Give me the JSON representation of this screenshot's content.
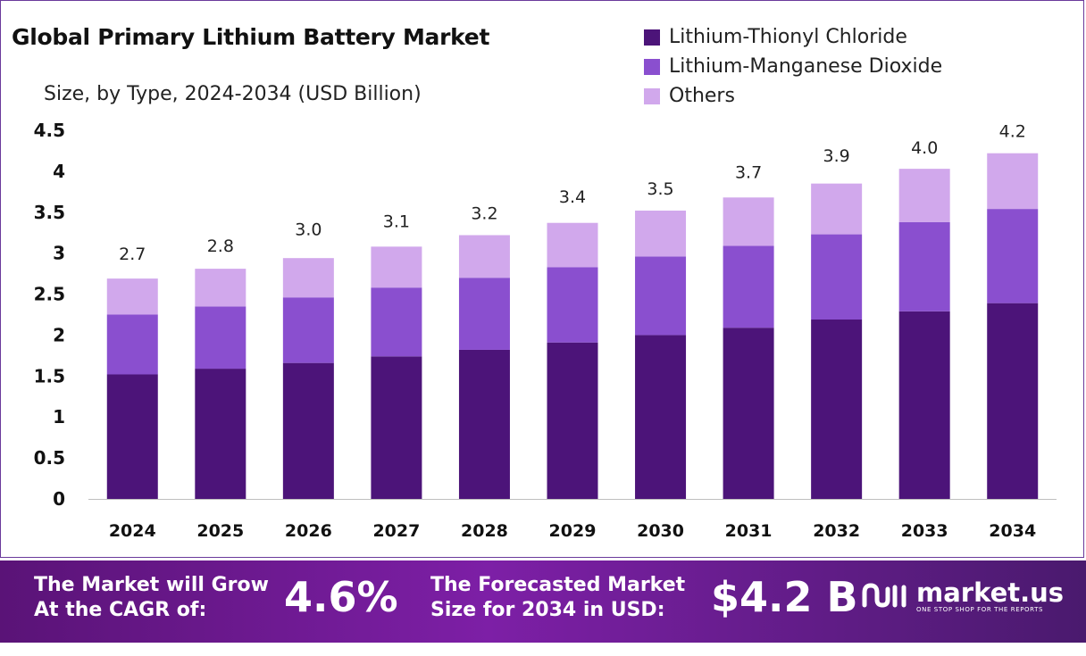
{
  "title": "Global Primary Lithium Battery Market",
  "subtitle": "Size, by Type, 2024-2034 (USD Billion)",
  "colors": {
    "thionyl": "#4c1479",
    "manganese": "#8a4fcf",
    "others": "#d1a8ec",
    "border": "#6a3a9b"
  },
  "chart_data": {
    "type": "bar",
    "stacked": true,
    "categories": [
      "2024",
      "2025",
      "2026",
      "2027",
      "2028",
      "2029",
      "2030",
      "2031",
      "2032",
      "2033",
      "2034"
    ],
    "series": [
      {
        "name": "Lithium-Thionyl Chloride",
        "color": "#4c1479",
        "values": [
          1.52,
          1.59,
          1.66,
          1.74,
          1.82,
          1.91,
          2.0,
          2.09,
          2.19,
          2.29,
          2.39
        ]
      },
      {
        "name": "Lithium-Manganese Dioxide",
        "color": "#8a4fcf",
        "values": [
          0.73,
          0.76,
          0.8,
          0.84,
          0.88,
          0.92,
          0.96,
          1.0,
          1.04,
          1.09,
          1.15
        ]
      },
      {
        "name": "Others",
        "color": "#d1a8ec",
        "values": [
          0.44,
          0.46,
          0.48,
          0.5,
          0.52,
          0.54,
          0.56,
          0.59,
          0.62,
          0.65,
          0.68
        ]
      }
    ],
    "totals": [
      "2.7",
      "2.8",
      "3.0",
      "3.1",
      "3.2",
      "3.4",
      "3.5",
      "3.7",
      "3.9",
      "4.0",
      "4.2"
    ],
    "yticks": [
      "0",
      "0.5",
      "1",
      "1.5",
      "2",
      "2.5",
      "3",
      "3.5",
      "4",
      "4.5"
    ],
    "ylim": [
      0,
      4.5
    ],
    "grid": false,
    "legend": "top-right"
  },
  "banner": {
    "cagr_text_line1": "The Market will Grow",
    "cagr_text_line2": "At the CAGR of:",
    "cagr_value": "4.6%",
    "forecast_text_line1": "The Forecasted Market",
    "forecast_text_line2": "Size for 2034 in USD:",
    "forecast_value": "$4.2 B"
  },
  "brand": {
    "name": "market.us",
    "tagline": "ONE STOP SHOP FOR THE REPORTS",
    "logo_icon": "market-us-logo-icon"
  }
}
